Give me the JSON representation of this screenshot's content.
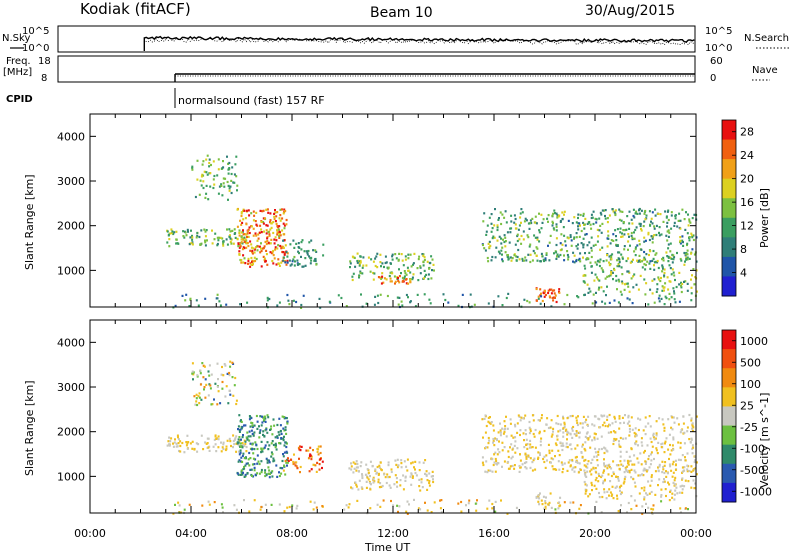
{
  "header": {
    "station": "Kodiak (fitACF)",
    "beam": "Beam 10",
    "date": "30/Aug/2015"
  },
  "top_panels": {
    "nsky_label": "N.Sky",
    "nsky_ticks": [
      "10^5",
      "10^0"
    ],
    "nsearch_label": "N.Search",
    "nsearch_ticks": [
      "10^5",
      "10^0"
    ],
    "freq_label_line1": "Freq.",
    "freq_label_line2": "[MHz]",
    "freq_ticks": [
      "18",
      "8"
    ],
    "nave_label": "Nave",
    "nave_ticks": [
      "60",
      "0"
    ],
    "cpid_label": "CPID",
    "cpid_text": "normalsound (fast) 157 RF"
  },
  "colors": {
    "power": [
      "#2020d0",
      "#1f55a8",
      "#2f7e78",
      "#3a9e60",
      "#7cc040",
      "#dcd020",
      "#f0a018",
      "#f06010",
      "#e81010"
    ],
    "velocity": [
      "#2020d0",
      "#2a5ab0",
      "#2f8a6a",
      "#6cc040",
      "#c8c8c0",
      "#f0c020",
      "#f08a10",
      "#f05010",
      "#e81010"
    ]
  },
  "chart_data": [
    {
      "type": "heatmap",
      "name": "power",
      "xlabel": "",
      "ylabel": "Slant Range [km]",
      "x_ticks": [
        "00:00",
        "04:00",
        "08:00",
        "12:00",
        "16:00",
        "20:00",
        "00:00"
      ],
      "xlim_hours": [
        0,
        24
      ],
      "ylim_km": [
        180,
        4500
      ],
      "y_ticks": [
        1000,
        2000,
        3000,
        4000
      ],
      "colorbar": {
        "label": "Power [dB]",
        "ticks": [
          4,
          8,
          12,
          16,
          20,
          24,
          28
        ],
        "range": [
          0,
          30
        ]
      },
      "scatter_regions": [
        {
          "t": [
            4.0,
            5.8
          ],
          "r": [
            2600,
            3600
          ],
          "density": 0.35,
          "value": [
            8,
            18
          ]
        },
        {
          "t": [
            3.0,
            6.2
          ],
          "r": [
            1550,
            1950
          ],
          "density": 0.65,
          "value": [
            8,
            20
          ]
        },
        {
          "t": [
            5.8,
            7.8
          ],
          "r": [
            1100,
            2400
          ],
          "density": 0.8,
          "value": [
            16,
            30
          ]
        },
        {
          "t": [
            7.6,
            9.2
          ],
          "r": [
            1100,
            1700
          ],
          "density": 0.5,
          "value": [
            6,
            14
          ]
        },
        {
          "t": [
            10.2,
            13.6
          ],
          "r": [
            800,
            1400
          ],
          "density": 0.55,
          "value": [
            8,
            20
          ]
        },
        {
          "t": [
            11.4,
            12.8
          ],
          "r": [
            700,
            900
          ],
          "density": 0.7,
          "value": [
            20,
            28
          ]
        },
        {
          "t": [
            15.5,
            24.0
          ],
          "r": [
            1200,
            2400
          ],
          "density": 0.45,
          "value": [
            6,
            18
          ]
        },
        {
          "t": [
            17.6,
            18.6
          ],
          "r": [
            300,
            650
          ],
          "density": 0.8,
          "value": [
            22,
            30
          ]
        },
        {
          "t": [
            19.5,
            24.0
          ],
          "r": [
            500,
            1300
          ],
          "density": 0.4,
          "value": [
            8,
            20
          ]
        },
        {
          "t": [
            3.2,
            24.0
          ],
          "r": [
            180,
            500
          ],
          "density": 0.15,
          "value": [
            4,
            16
          ]
        }
      ]
    },
    {
      "type": "heatmap",
      "name": "velocity",
      "xlabel": "Time UT",
      "ylabel": "Slant Range [km]",
      "x_ticks": [
        "00:00",
        "04:00",
        "08:00",
        "12:00",
        "16:00",
        "20:00",
        "00:00"
      ],
      "xlim_hours": [
        0,
        24
      ],
      "ylim_km": [
        180,
        4500
      ],
      "y_ticks": [
        1000,
        2000,
        3000,
        4000
      ],
      "colorbar": {
        "label": "Velocity [m s^-1]",
        "ticks": [
          "1000",
          "500",
          "100",
          "25",
          "-25",
          "-100",
          "-500",
          "-1000"
        ]
      },
      "scatter_regions": [
        {
          "t": [
            4.0,
            5.8
          ],
          "r": [
            2600,
            3600
          ],
          "density": 0.35,
          "value": [
            1,
            6
          ]
        },
        {
          "t": [
            3.0,
            6.2
          ],
          "r": [
            1550,
            1950
          ],
          "density": 0.6,
          "value": [
            4,
            5
          ]
        },
        {
          "t": [
            5.8,
            7.8
          ],
          "r": [
            1000,
            2400
          ],
          "density": 0.75,
          "value": [
            1,
            3
          ]
        },
        {
          "t": [
            7.6,
            9.2
          ],
          "r": [
            1100,
            1700
          ],
          "density": 0.45,
          "value": [
            5,
            8
          ]
        },
        {
          "t": [
            10.2,
            13.6
          ],
          "r": [
            700,
            1400
          ],
          "density": 0.5,
          "value": [
            4,
            5
          ]
        },
        {
          "t": [
            15.5,
            24.0
          ],
          "r": [
            1100,
            2400
          ],
          "density": 0.45,
          "value": [
            4,
            5
          ]
        },
        {
          "t": [
            17.6,
            18.6
          ],
          "r": [
            300,
            650
          ],
          "density": 0.7,
          "value": [
            4,
            5
          ]
        },
        {
          "t": [
            19.5,
            24.0
          ],
          "r": [
            500,
            1300
          ],
          "density": 0.4,
          "value": [
            4,
            5
          ]
        },
        {
          "t": [
            3.2,
            24.0
          ],
          "r": [
            180,
            500
          ],
          "density": 0.15,
          "value": [
            3,
            6
          ]
        }
      ]
    }
  ]
}
